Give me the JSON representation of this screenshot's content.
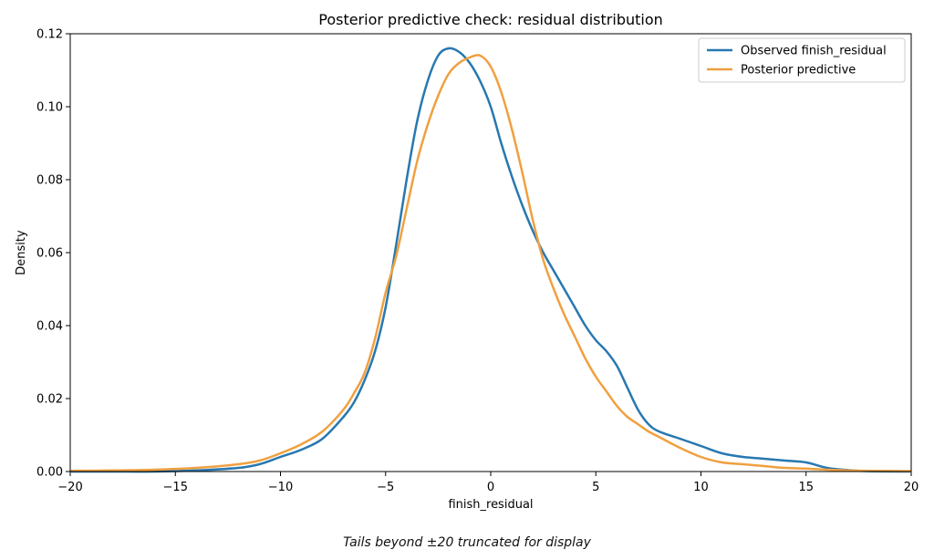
{
  "chart_data": {
    "type": "line",
    "title": "Posterior predictive check: residual distribution",
    "xlabel": "finish_residual",
    "ylabel": "Density",
    "xlim": [
      -20,
      20
    ],
    "ylim": [
      0,
      0.12
    ],
    "xticks": [
      -20,
      -15,
      -10,
      -5,
      0,
      5,
      10,
      15,
      20
    ],
    "xtick_labels": [
      "−20",
      "−15",
      "−10",
      "−5",
      "0",
      "5",
      "10",
      "15",
      "20"
    ],
    "yticks": [
      0,
      0.02,
      0.04,
      0.06,
      0.08,
      0.1,
      0.12
    ],
    "ytick_labels": [
      "0.00",
      "0.02",
      "0.04",
      "0.06",
      "0.08",
      "0.10",
      "0.12"
    ],
    "grid": false,
    "legend_position": "top-right",
    "series": [
      {
        "name": "Observed finish_residual",
        "color": "#2878b0",
        "x": [
          -20,
          -18,
          -16,
          -14,
          -12,
          -11,
          -10,
          -9,
          -8,
          -7,
          -6.5,
          -6,
          -5.5,
          -5,
          -4.5,
          -4,
          -3.5,
          -3,
          -2.5,
          -2,
          -1.5,
          -1,
          -0.5,
          0,
          0.5,
          1,
          1.5,
          2,
          2.5,
          3,
          3.5,
          4,
          4.5,
          5,
          5.5,
          6,
          6.5,
          7,
          7.5,
          8,
          9,
          10,
          11,
          12,
          13,
          14,
          15,
          16,
          17,
          18,
          20
        ],
        "y": [
          0.0,
          0.0,
          0.0,
          0.0003,
          0.001,
          0.002,
          0.004,
          0.006,
          0.009,
          0.015,
          0.019,
          0.025,
          0.033,
          0.045,
          0.062,
          0.08,
          0.096,
          0.107,
          0.114,
          0.116,
          0.115,
          0.112,
          0.107,
          0.1,
          0.09,
          0.081,
          0.073,
          0.066,
          0.06,
          0.055,
          0.05,
          0.045,
          0.04,
          0.036,
          0.033,
          0.029,
          0.023,
          0.017,
          0.013,
          0.011,
          0.009,
          0.007,
          0.005,
          0.004,
          0.0035,
          0.003,
          0.0025,
          0.001,
          0.0004,
          0.0001,
          0.0
        ]
      },
      {
        "name": "Posterior predictive",
        "color": "#f0a040",
        "x": [
          -20,
          -18,
          -16,
          -14,
          -12,
          -11,
          -10,
          -9,
          -8,
          -7,
          -6.5,
          -6,
          -5.5,
          -5,
          -4.5,
          -4,
          -3.5,
          -3,
          -2.5,
          -2,
          -1.5,
          -1,
          -0.5,
          0,
          0.5,
          1,
          1.5,
          2,
          2.5,
          3,
          3.5,
          4,
          4.5,
          5,
          5.5,
          6,
          6.5,
          7,
          7.5,
          8,
          9,
          10,
          11,
          12,
          13,
          14,
          15,
          16,
          17,
          18,
          20
        ],
        "y": [
          0.0002,
          0.0003,
          0.0005,
          0.001,
          0.002,
          0.003,
          0.005,
          0.0075,
          0.011,
          0.017,
          0.0215,
          0.027,
          0.0365,
          0.049,
          0.059,
          0.072,
          0.085,
          0.095,
          0.103,
          0.109,
          0.112,
          0.1135,
          0.114,
          0.111,
          0.104,
          0.094,
          0.082,
          0.069,
          0.058,
          0.05,
          0.043,
          0.037,
          0.031,
          0.026,
          0.022,
          0.018,
          0.015,
          0.013,
          0.011,
          0.0095,
          0.0065,
          0.004,
          0.0025,
          0.002,
          0.0015,
          0.001,
          0.0008,
          0.0005,
          0.0003,
          0.0002,
          0.0001
        ]
      }
    ]
  },
  "footnote": "Tails beyond ±20 truncated for display"
}
